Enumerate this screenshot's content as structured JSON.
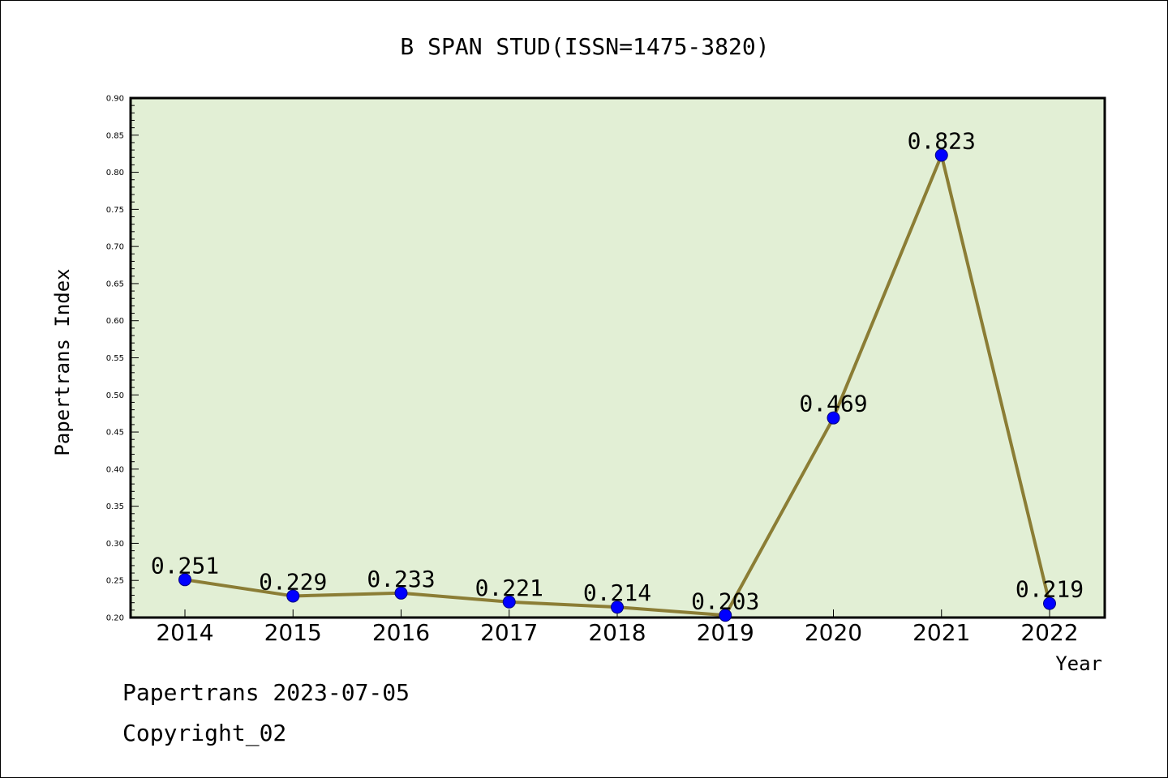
{
  "chart_data": {
    "type": "line",
    "title": "B SPAN STUD(ISSN=1475-3820)",
    "xlabel": "Year",
    "ylabel": "Papertrans Index",
    "categories": [
      "2014",
      "2015",
      "2016",
      "2017",
      "2018",
      "2019",
      "2020",
      "2021",
      "2022"
    ],
    "series": [
      {
        "values": [
          0.251,
          0.229,
          0.233,
          0.221,
          0.214,
          0.203,
          0.469,
          0.823,
          0.219
        ],
        "labels": [
          "0.251",
          "0.229",
          "0.233",
          "0.221",
          "0.214",
          "0.203",
          "0.469",
          "0.823",
          "0.219"
        ]
      }
    ],
    "ylim": [
      0.2,
      0.9
    ],
    "yticks": [
      "0.20",
      "0.25",
      "0.30",
      "0.35",
      "0.40",
      "0.45",
      "0.50",
      "0.55",
      "0.60",
      "0.65",
      "0.70",
      "0.75",
      "0.80",
      "0.85",
      "0.90"
    ],
    "grid": false,
    "colors": {
      "plot_background": "#e2efd5",
      "line": "#8b7d35",
      "marker": "#0000ff"
    }
  },
  "footer": {
    "line1": "Papertrans 2023-07-05",
    "line2": "Copyright_02"
  }
}
